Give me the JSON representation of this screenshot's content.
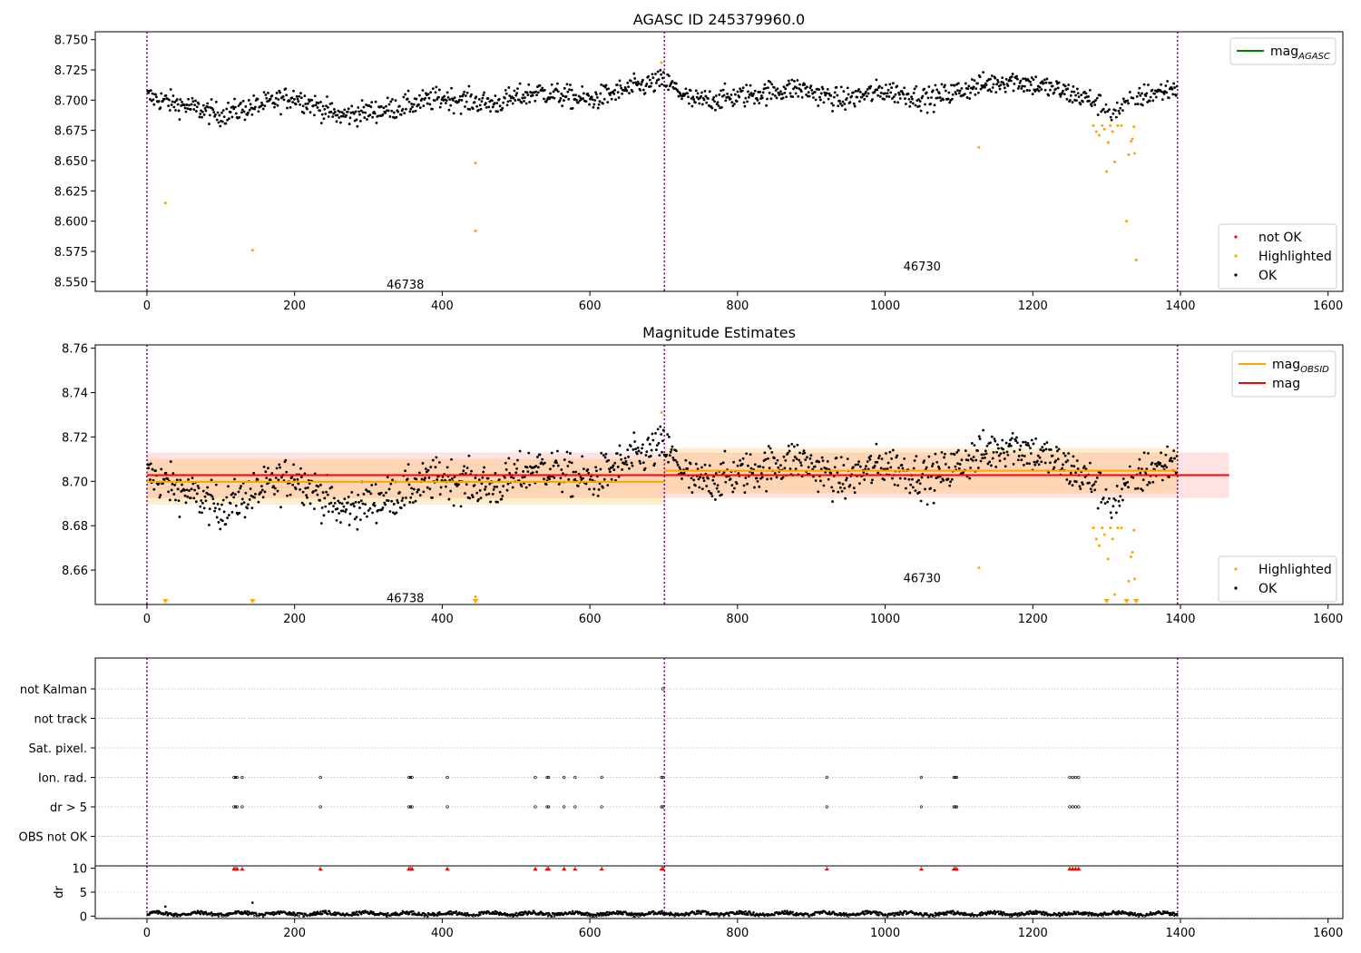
{
  "chart_data": [
    {
      "type": "scatter",
      "title": "AGASC ID 245379960.0",
      "xlabel": "",
      "ylabel": "",
      "xlim": [
        -70,
        1620
      ],
      "ylim": [
        8.542,
        8.7565
      ],
      "x_ticks": [
        0,
        200,
        400,
        600,
        800,
        1000,
        1200,
        1400,
        1600
      ],
      "y_ticks": [
        8.55,
        8.575,
        8.6,
        8.625,
        8.65,
        8.675,
        8.7,
        8.725,
        8.75
      ],
      "y_tick_labels": [
        "8.550",
        "8.575",
        "8.600",
        "8.625",
        "8.650",
        "8.675",
        "8.700",
        "8.725",
        "8.750"
      ],
      "obsid_boundaries": [
        0,
        701,
        1396
      ],
      "obsid_labels": [
        {
          "text": "46738",
          "x": 350,
          "y": 8.548
        },
        {
          "text": "46730",
          "x": 1050,
          "y": 8.563
        }
      ],
      "legend_upper": {
        "placement": "upper-right",
        "entries": [
          {
            "label": "mag",
            "sub": "AGASC",
            "color": "#008000"
          }
        ]
      },
      "legend_lower": {
        "placement": "lower-right",
        "entries": [
          {
            "label": "not OK",
            "color": "#ff0000"
          },
          {
            "label": "Highlighted",
            "color": "#ffa500"
          },
          {
            "label": "OK",
            "color": "#000000"
          }
        ]
      },
      "ok_trend": {
        "x": [
          0,
          100,
          200,
          260,
          330,
          400,
          470,
          530,
          600,
          650,
          700,
          740,
          800,
          880,
          940,
          1000,
          1060,
          1120,
          1170,
          1230,
          1280,
          1310,
          1350,
          1396
        ],
        "y": [
          8.703,
          8.688,
          8.703,
          8.687,
          8.693,
          8.702,
          8.697,
          8.707,
          8.7,
          8.709,
          8.716,
          8.699,
          8.703,
          8.71,
          8.7,
          8.708,
          8.701,
          8.711,
          8.717,
          8.709,
          8.7,
          8.69,
          8.704,
          8.71
        ],
        "noise": 0.0085,
        "spacing": 1.08
      },
      "highlighted": [
        {
          "x": 25,
          "y": 8.615
        },
        {
          "x": 143,
          "y": 8.576
        },
        {
          "x": 445,
          "y": 8.648
        },
        {
          "x": 445,
          "y": 8.592
        },
        {
          "x": 697,
          "y": 8.731
        },
        {
          "x": 1127,
          "y": 8.661
        },
        {
          "x": 1282,
          "y": 8.679
        },
        {
          "x": 1286,
          "y": 8.674
        },
        {
          "x": 1290,
          "y": 8.671
        },
        {
          "x": 1294,
          "y": 8.679
        },
        {
          "x": 1297,
          "y": 8.676
        },
        {
          "x": 1300,
          "y": 8.641
        },
        {
          "x": 1302,
          "y": 8.665
        },
        {
          "x": 1305,
          "y": 8.679
        },
        {
          "x": 1308,
          "y": 8.674
        },
        {
          "x": 1311,
          "y": 8.649
        },
        {
          "x": 1315,
          "y": 8.679
        },
        {
          "x": 1320,
          "y": 8.679
        },
        {
          "x": 1327,
          "y": 8.6
        },
        {
          "x": 1330,
          "y": 8.655
        },
        {
          "x": 1333,
          "y": 8.666
        },
        {
          "x": 1335,
          "y": 8.668
        },
        {
          "x": 1337,
          "y": 8.678
        },
        {
          "x": 1340,
          "y": 8.568
        },
        {
          "x": 1338,
          "y": 8.656
        }
      ]
    },
    {
      "type": "scatter",
      "title": "Magnitude Estimates",
      "xlabel": "",
      "ylabel": "",
      "xlim": [
        -70,
        1620
      ],
      "ylim": [
        8.6445,
        8.7615
      ],
      "x_ticks": [
        0,
        200,
        400,
        600,
        800,
        1000,
        1200,
        1400,
        1600
      ],
      "y_ticks": [
        8.66,
        8.68,
        8.7,
        8.72,
        8.74,
        8.76
      ],
      "y_tick_labels": [
        "8.66",
        "8.68",
        "8.70",
        "8.72",
        "8.74",
        "8.76"
      ],
      "obsid_boundaries": [
        0,
        701,
        1396
      ],
      "obsid_labels": [
        {
          "text": "46738",
          "x": 350,
          "y": 8.6475
        },
        {
          "text": "46730",
          "x": 1050,
          "y": 8.6565
        }
      ],
      "mag": {
        "value": 8.7028,
        "band": [
          8.6925,
          8.713
        ],
        "x_range": [
          0,
          1466
        ],
        "color": "#ff0000"
      },
      "mag_obsid": [
        {
          "x_range": [
            0,
            701
          ],
          "value": 8.6998,
          "band": [
            8.6895,
            8.7101
          ]
        },
        {
          "x_range": [
            701,
            1396
          ],
          "value": 8.7048,
          "band": [
            8.6946,
            8.715
          ]
        }
      ],
      "legend_upper": {
        "placement": "upper-right",
        "entries": [
          {
            "label": "mag",
            "sub": "OBSID",
            "color": "#ffa500"
          },
          {
            "label": "mag",
            "color": "#ff0000"
          }
        ]
      },
      "legend_lower": {
        "placement": "lower-right",
        "entries": [
          {
            "label": "Highlighted",
            "color": "#ffa500"
          },
          {
            "label": "OK",
            "color": "#000000"
          }
        ]
      },
      "clipped_low_markers_x": [
        25,
        143,
        445,
        445,
        1300,
        1327,
        1340
      ]
    },
    {
      "type": "scatter",
      "title": "",
      "xlabel": "",
      "ylabel": "",
      "xlim": [
        -70,
        1620
      ],
      "categories": [
        "not Kalman",
        "not track",
        "Sat. pixel.",
        "Ion. rad.",
        "dr > 5",
        "OBS not OK"
      ],
      "obsid_boundaries": [
        0,
        701,
        1396
      ],
      "flagged_x": [
        118,
        120,
        122,
        129,
        235,
        355,
        357,
        359,
        407,
        526,
        542,
        544,
        565,
        580,
        616,
        697,
        699,
        921,
        1049,
        1093,
        1095,
        1097,
        1250,
        1254,
        1258,
        1262
      ],
      "not_kalman_x": [
        699
      ]
    },
    {
      "type": "line",
      "title": "",
      "xlabel": "",
      "ylabel": "dr",
      "xlim": [
        -70,
        1620
      ],
      "ylim": [
        -0.5,
        10.5
      ],
      "y_ticks": [
        0,
        5,
        10
      ],
      "y_tick_labels": [
        "0",
        "5",
        "10"
      ],
      "obsid_boundaries": [
        0,
        701,
        1396
      ],
      "dr_baseline": 0.5,
      "dr_spikes": [
        {
          "x": 25,
          "y": 2.0
        },
        {
          "x": 143,
          "y": 2.8
        }
      ],
      "clipped_high_x": [
        118,
        120,
        122,
        129,
        235,
        355,
        357,
        359,
        407,
        526,
        542,
        544,
        565,
        580,
        616,
        697,
        699,
        921,
        1049,
        1093,
        1095,
        1097,
        1250,
        1254,
        1258,
        1262
      ]
    }
  ]
}
